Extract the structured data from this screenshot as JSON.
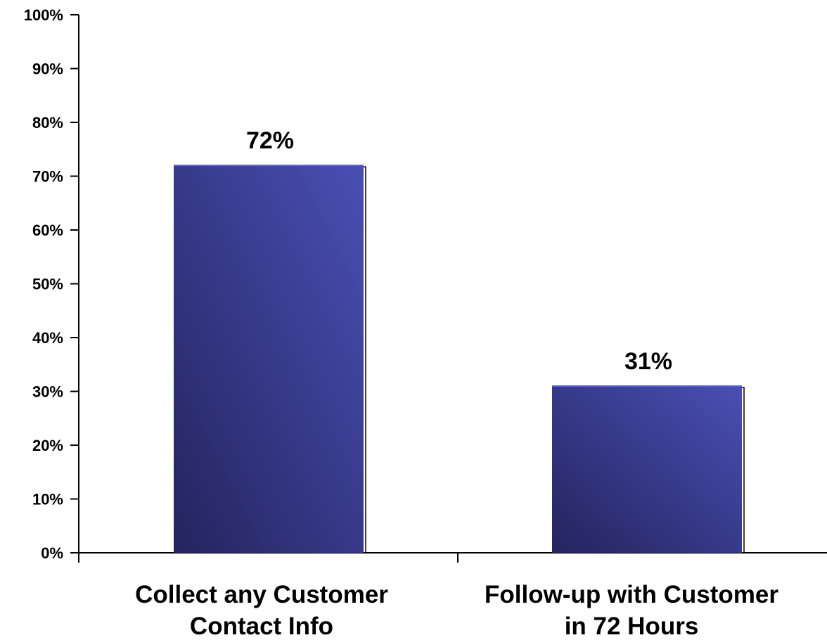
{
  "chart_data": {
    "type": "bar",
    "categories": [
      [
        "Collect any Customer",
        "Contact Info"
      ],
      [
        "Follow-up with Customer",
        "in 72 Hours"
      ]
    ],
    "values": [
      72,
      31
    ],
    "data_labels": [
      "72%",
      "31%"
    ],
    "ylim": [
      0,
      100
    ],
    "yticks": [
      0,
      10,
      20,
      30,
      40,
      50,
      60,
      70,
      80,
      90,
      100
    ],
    "ytick_labels": [
      "0%",
      "10%",
      "20%",
      "30%",
      "40%",
      "50%",
      "60%",
      "70%",
      "80%",
      "90%",
      "100%"
    ],
    "grid": false,
    "legend": "none",
    "title": "",
    "xlabel": "",
    "ylabel": "",
    "colors": {
      "bar_light": "#4a4fb4",
      "bar_dark": "#24245e",
      "axis": "#000000",
      "text": "#000000"
    }
  }
}
